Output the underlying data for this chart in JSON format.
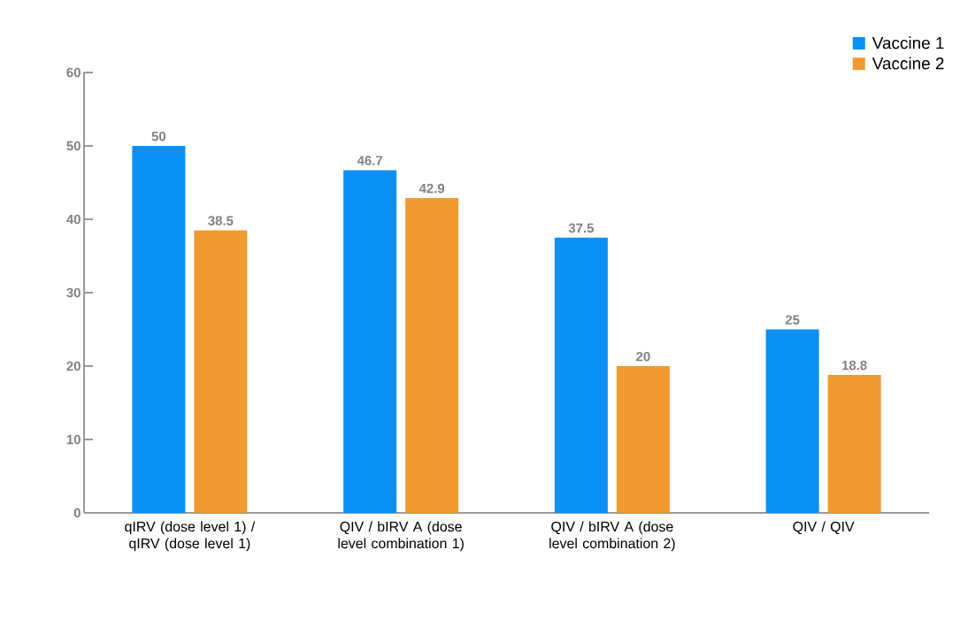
{
  "chart_data": {
    "type": "bar",
    "categories": [
      "qIRV (dose level 1) / qIRV (dose level 1)",
      "QIV / bIRV A (dose level combination 1)",
      "QIV / bIRV A (dose level combination 2)",
      "QIV / QIV"
    ],
    "series": [
      {
        "name": "Vaccine 1",
        "color": "#0a8ff5",
        "values": [
          50,
          46.7,
          37.5,
          25
        ]
      },
      {
        "name": "Vaccine 2",
        "color": "#f09a30",
        "values": [
          38.5,
          42.9,
          20,
          18.8
        ]
      }
    ],
    "ylim": [
      0,
      60
    ],
    "yticks": [
      0,
      10,
      20,
      30,
      40,
      50,
      60
    ],
    "data_labels": true,
    "legend": "top right"
  }
}
